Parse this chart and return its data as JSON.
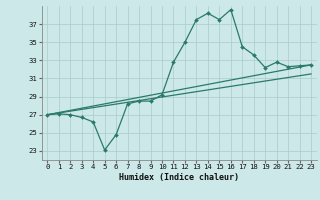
{
  "xlabel": "Humidex (Indice chaleur)",
  "bg_color": "#cce8e8",
  "grid_color": "#aacccc",
  "line_color": "#2a7a6a",
  "xlim": [
    -0.5,
    23.5
  ],
  "ylim": [
    22.0,
    39.0
  ],
  "yticks": [
    23,
    25,
    27,
    29,
    31,
    33,
    35,
    37
  ],
  "xticks": [
    0,
    1,
    2,
    3,
    4,
    5,
    6,
    7,
    8,
    9,
    10,
    11,
    12,
    13,
    14,
    15,
    16,
    17,
    18,
    19,
    20,
    21,
    22,
    23
  ],
  "trend1_x": [
    0,
    23
  ],
  "trend1_y": [
    27.0,
    31.5
  ],
  "trend2_x": [
    0,
    23
  ],
  "trend2_y": [
    27.0,
    32.5
  ],
  "main_x": [
    0,
    1,
    2,
    3,
    4,
    5,
    6,
    7,
    8,
    9,
    10,
    11,
    12,
    13,
    14,
    15,
    16,
    17,
    18,
    19,
    20,
    21,
    22,
    23
  ],
  "main_y": [
    27.0,
    27.1,
    27.0,
    26.7,
    26.2,
    23.1,
    24.8,
    28.2,
    28.5,
    28.5,
    29.2,
    32.8,
    35.0,
    37.5,
    38.2,
    37.5,
    38.6,
    34.5,
    33.6,
    32.2,
    32.8,
    32.3,
    32.4,
    32.5
  ]
}
